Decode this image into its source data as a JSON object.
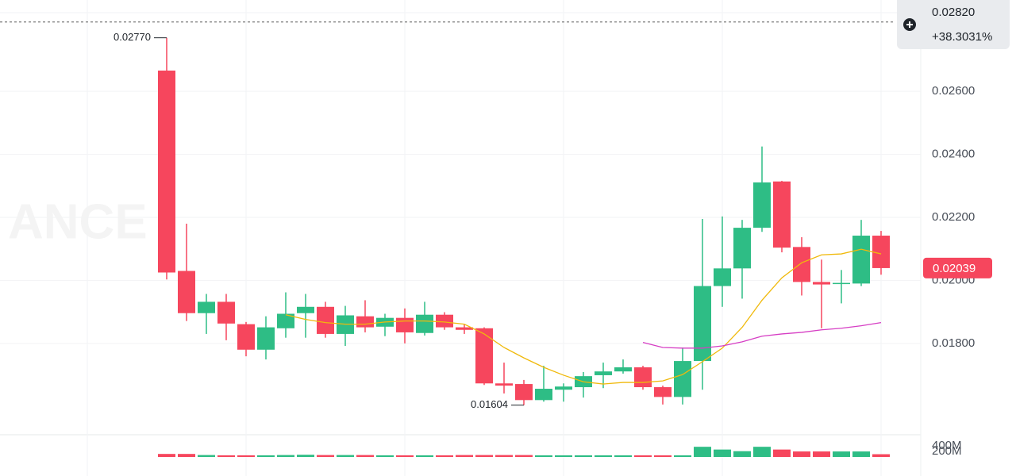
{
  "chart_data": {
    "type": "candlestick",
    "watermark": "ANCE",
    "up_color": "#2ebd85",
    "down_color": "#f6465d",
    "ylim": [
      0.0151,
      0.0289
    ],
    "yticks": [
      {
        "value": 0.026,
        "label": "0.02600"
      },
      {
        "value": 0.024,
        "label": "0.02400"
      },
      {
        "value": 0.022,
        "label": "0.02200"
      },
      {
        "value": 0.02,
        "label": "0.02000"
      },
      {
        "value": 0.018,
        "label": "0.01800"
      }
    ],
    "grid": true,
    "open": [
      0.02666,
      0.0203,
      0.01896,
      0.01932,
      0.01861,
      0.0178,
      0.01848,
      0.01896,
      0.01916,
      0.0183,
      0.01886,
      0.01853,
      0.01881,
      0.01833,
      0.01891,
      0.01851,
      0.01848,
      0.01673,
      0.01671,
      0.0162,
      0.01653,
      0.01661,
      0.01699,
      0.01711,
      0.01724,
      0.01661,
      0.0163,
      0.01744,
      0.01982,
      0.02038,
      0.02167,
      0.02314,
      0.02106,
      0.01995,
      0.0199,
      0.0199,
      0.02142
    ],
    "high": [
      0.0277,
      0.0218,
      0.01957,
      0.01957,
      0.01868,
      0.01886,
      0.01962,
      0.01957,
      0.01932,
      0.01919,
      0.01937,
      0.01894,
      0.01911,
      0.01932,
      0.01899,
      0.01861,
      0.01851,
      0.01739,
      0.01684,
      0.01729,
      0.01673,
      0.01709,
      0.01739,
      0.01749,
      0.01729,
      0.01666,
      0.01787,
      0.02195,
      0.02203,
      0.02192,
      0.02425,
      0.02316,
      0.02137,
      0.02066,
      0.02033,
      0.02192,
      0.02157
    ],
    "low": [
      0.02003,
      0.01871,
      0.0183,
      0.0181,
      0.01759,
      0.01749,
      0.01818,
      0.01818,
      0.01818,
      0.01792,
      0.01835,
      0.01823,
      0.018,
      0.01825,
      0.01843,
      0.0183,
      0.01668,
      0.01641,
      0.01604,
      0.01615,
      0.01615,
      0.01628,
      0.01658,
      0.01704,
      0.01653,
      0.01606,
      0.01606,
      0.01653,
      0.01916,
      0.01942,
      0.02154,
      0.02089,
      0.01952,
      0.01848,
      0.01927,
      0.01982,
      0.02018
    ],
    "close": [
      0.02025,
      0.01896,
      0.01932,
      0.01863,
      0.0178,
      0.01851,
      0.01894,
      0.01916,
      0.0183,
      0.01889,
      0.01851,
      0.01881,
      0.01835,
      0.01891,
      0.01851,
      0.01843,
      0.01673,
      0.01666,
      0.0162,
      0.01656,
      0.01663,
      0.01696,
      0.01711,
      0.01724,
      0.01661,
      0.0163,
      0.01744,
      0.01982,
      0.02038,
      0.02167,
      0.02311,
      0.02104,
      0.01995,
      0.01987,
      0.01992,
      0.02142,
      0.02039
    ],
    "moving_averages": [
      {
        "color": "#f0b90b",
        "values": [
          null,
          null,
          null,
          null,
          null,
          null,
          0.01891,
          0.01876,
          0.01866,
          0.01861,
          0.01861,
          0.01868,
          0.01871,
          0.01871,
          0.01868,
          0.01861,
          0.0183,
          0.01787,
          0.01754,
          0.01724,
          0.01699,
          0.01678,
          0.01671,
          0.01676,
          0.01676,
          0.01681,
          0.01701,
          0.01742,
          0.01785,
          0.01851,
          0.01937,
          0.02008,
          0.02056,
          0.02081,
          0.02084,
          0.02099,
          0.02084
        ]
      },
      {
        "color": "#d63ec4",
        "values": [
          null,
          null,
          null,
          null,
          null,
          null,
          null,
          null,
          null,
          null,
          null,
          null,
          null,
          null,
          null,
          null,
          null,
          null,
          null,
          null,
          null,
          null,
          null,
          null,
          0.01803,
          0.01787,
          0.01785,
          0.01785,
          0.01792,
          0.01805,
          0.01823,
          0.0183,
          0.01835,
          0.01843,
          0.01848,
          0.01856,
          0.01866
        ]
      }
    ],
    "high_marker": {
      "value": 0.0277,
      "label": "0.02770"
    },
    "low_marker": 0.01604,
    "last_price": 0.02039,
    "crosshair": {
      "value": 0.0282,
      "label": "0.02820"
    },
    "change": "+38.3031%",
    "volume": [
      110000000,
      110000000,
      70000000,
      60000000,
      60000000,
      60000000,
      70000000,
      80000000,
      70000000,
      70000000,
      70000000,
      60000000,
      60000000,
      60000000,
      60000000,
      70000000,
      70000000,
      70000000,
      70000000,
      60000000,
      60000000,
      60000000,
      60000000,
      60000000,
      60000000,
      60000000,
      60000000,
      370000000,
      270000000,
      210000000,
      370000000,
      270000000,
      200000000,
      200000000,
      200000000,
      200000000,
      100000000
    ],
    "volume_ylim": [
      0,
      750000000
    ],
    "volume_ticks": [
      {
        "value": 400000000,
        "label": "400M"
      },
      {
        "value": 200000000,
        "label": "200M"
      }
    ]
  }
}
